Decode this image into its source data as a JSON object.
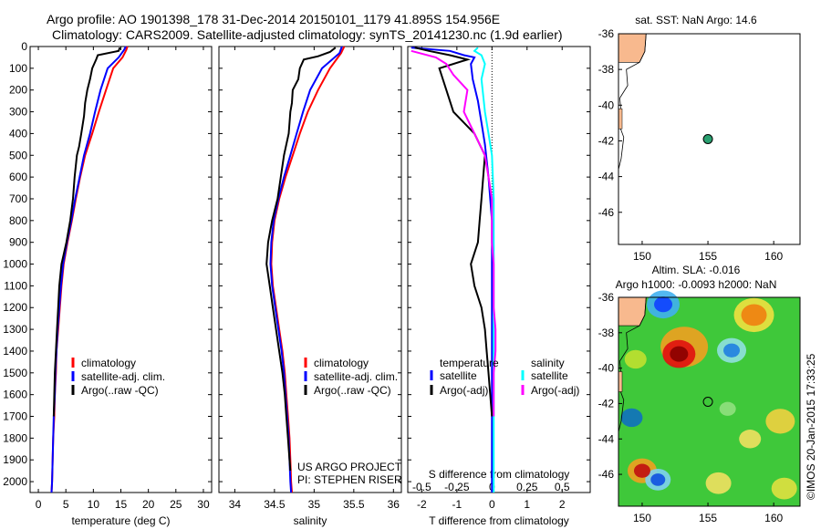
{
  "header": {
    "line1": "Argo profile: AO 1901398_178 31-Dec-2014 20150101_1179 41.895S 154.956E",
    "line2": "Climatology: CARS2009. Satellite-adjusted climatology: synTS_20141230.nc (1.9d earlier)"
  },
  "colors": {
    "climatology": "#ff0000",
    "satellite": "#0000ff",
    "argo": "#000000",
    "sal_satellite": "#00ffff",
    "sal_argo": "#ff00ff",
    "land": "#f8b98e"
  },
  "depth_axis": {
    "ticks": [
      0,
      100,
      200,
      300,
      400,
      500,
      600,
      700,
      800,
      900,
      1000,
      1100,
      1200,
      1300,
      1400,
      1500,
      1600,
      1700,
      1800,
      1900,
      2000
    ],
    "range": [
      0,
      2050
    ]
  },
  "chart_data": [
    {
      "type": "line",
      "name": "temperature",
      "xlabel": "temperature (deg C)",
      "xlim": [
        -1.5,
        31.5
      ],
      "xticks": [
        0,
        5,
        10,
        15,
        20,
        25,
        30
      ],
      "legend": [
        "climatology",
        "satellite-adj. clim.",
        "Argo(..raw -QC)"
      ],
      "series": [
        {
          "name": "climatology",
          "color": "red",
          "points": [
            [
              16.2,
              0
            ],
            [
              16.0,
              15
            ],
            [
              15.3,
              50
            ],
            [
              13.6,
              100
            ],
            [
              12.3,
              200
            ],
            [
              11.0,
              300
            ],
            [
              9.8,
              400
            ],
            [
              8.5,
              500
            ],
            [
              7.6,
              600
            ],
            [
              6.8,
              700
            ],
            [
              6.1,
              800
            ],
            [
              5.3,
              900
            ],
            [
              4.6,
              1000
            ],
            [
              4.2,
              1100
            ],
            [
              3.9,
              1200
            ],
            [
              3.6,
              1300
            ],
            [
              3.3,
              1400
            ],
            [
              3.2,
              1500
            ],
            [
              3.0,
              1600
            ],
            [
              2.9,
              1700
            ],
            [
              2.7,
              1800
            ],
            [
              2.6,
              1900
            ],
            [
              2.5,
              2000
            ],
            [
              2.4,
              2050
            ]
          ]
        },
        {
          "name": "satellite-adj. clim.",
          "color": "blue",
          "points": [
            [
              15.9,
              0
            ],
            [
              15.6,
              15
            ],
            [
              14.6,
              50
            ],
            [
              12.6,
              100
            ],
            [
              11.3,
              200
            ],
            [
              10.3,
              300
            ],
            [
              9.4,
              400
            ],
            [
              8.3,
              500
            ],
            [
              7.5,
              600
            ],
            [
              6.7,
              700
            ],
            [
              6.0,
              800
            ],
            [
              5.2,
              900
            ],
            [
              4.5,
              1000
            ],
            [
              4.1,
              1100
            ],
            [
              3.8,
              1200
            ],
            [
              3.5,
              1300
            ],
            [
              3.3,
              1400
            ],
            [
              3.1,
              1500
            ],
            [
              3.0,
              1600
            ],
            [
              2.8,
              1700
            ],
            [
              2.7,
              1800
            ],
            [
              2.6,
              1900
            ],
            [
              2.5,
              2000
            ],
            [
              2.4,
              2050
            ]
          ]
        },
        {
          "name": "Argo(..raw -QC)",
          "color": "black",
          "points": [
            [
              14.8,
              5
            ],
            [
              14.6,
              20
            ],
            [
              10.8,
              40
            ],
            [
              10.5,
              60
            ],
            [
              9.8,
              100
            ],
            [
              9.4,
              150
            ],
            [
              8.9,
              200
            ],
            [
              8.5,
              260
            ],
            [
              8.3,
              320
            ],
            [
              7.8,
              400
            ],
            [
              7.4,
              460
            ],
            [
              7.0,
              500
            ],
            [
              6.6,
              600
            ],
            [
              6.3,
              700
            ],
            [
              5.8,
              800
            ],
            [
              5.1,
              900
            ],
            [
              4.2,
              1000
            ],
            [
              3.8,
              1100
            ],
            [
              3.6,
              1200
            ],
            [
              3.4,
              1300
            ],
            [
              3.2,
              1400
            ],
            [
              3.0,
              1500
            ],
            [
              2.9,
              1600
            ],
            [
              2.8,
              1700
            ]
          ]
        }
      ]
    },
    {
      "type": "line",
      "name": "salinity",
      "xlabel": "salinity",
      "xlim": [
        33.8,
        36.1
      ],
      "xticks": [
        34,
        34.5,
        35,
        35.5,
        36
      ],
      "legend": [
        "climatology",
        "satellite-adj. clim.",
        "Argo(..raw -QC)"
      ],
      "annotation": [
        "US ARGO PROJECT",
        "PI: STEPHEN RISER"
      ],
      "series": [
        {
          "name": "climatology",
          "color": "red",
          "points": [
            [
              35.38,
              0
            ],
            [
              35.34,
              30
            ],
            [
              35.2,
              100
            ],
            [
              35.05,
              200
            ],
            [
              34.92,
              300
            ],
            [
              34.82,
              400
            ],
            [
              34.73,
              500
            ],
            [
              34.64,
              600
            ],
            [
              34.56,
              700
            ],
            [
              34.5,
              800
            ],
            [
              34.47,
              900
            ],
            [
              34.46,
              1000
            ],
            [
              34.48,
              1100
            ],
            [
              34.52,
              1200
            ],
            [
              34.56,
              1300
            ],
            [
              34.6,
              1400
            ],
            [
              34.63,
              1500
            ],
            [
              34.65,
              1600
            ],
            [
              34.67,
              1700
            ],
            [
              34.69,
              1800
            ],
            [
              34.7,
              1900
            ],
            [
              34.71,
              2000
            ],
            [
              34.72,
              2050
            ]
          ]
        },
        {
          "name": "satellite-adj. clim.",
          "color": "blue",
          "points": [
            [
              35.35,
              0
            ],
            [
              35.32,
              30
            ],
            [
              35.1,
              100
            ],
            [
              34.95,
              200
            ],
            [
              34.86,
              300
            ],
            [
              34.78,
              400
            ],
            [
              34.7,
              500
            ],
            [
              34.62,
              600
            ],
            [
              34.55,
              700
            ],
            [
              34.49,
              800
            ],
            [
              34.46,
              900
            ],
            [
              34.45,
              1000
            ],
            [
              34.47,
              1100
            ],
            [
              34.51,
              1200
            ],
            [
              34.55,
              1300
            ],
            [
              34.59,
              1400
            ],
            [
              34.62,
              1500
            ],
            [
              34.64,
              1600
            ],
            [
              34.66,
              1700
            ],
            [
              34.68,
              1800
            ],
            [
              34.69,
              1900
            ],
            [
              34.7,
              2000
            ],
            [
              34.71,
              2050
            ]
          ]
        },
        {
          "name": "Argo(..raw -QC)",
          "color": "black",
          "points": [
            [
              35.27,
              5
            ],
            [
              35.2,
              25
            ],
            [
              35.05,
              45
            ],
            [
              34.87,
              60
            ],
            [
              34.82,
              100
            ],
            [
              34.8,
              150
            ],
            [
              34.73,
              200
            ],
            [
              34.72,
              260
            ],
            [
              34.7,
              300
            ],
            [
              34.68,
              400
            ],
            [
              34.62,
              500
            ],
            [
              34.58,
              600
            ],
            [
              34.54,
              700
            ],
            [
              34.47,
              800
            ],
            [
              34.42,
              900
            ],
            [
              34.4,
              1000
            ],
            [
              34.44,
              1100
            ],
            [
              34.48,
              1200
            ],
            [
              34.52,
              1300
            ],
            [
              34.56,
              1400
            ],
            [
              34.6,
              1500
            ],
            [
              34.63,
              1600
            ],
            [
              34.65,
              1700
            ],
            [
              34.67,
              1800
            ],
            [
              34.69,
              1900
            ],
            [
              34.7,
              1950
            ]
          ]
        }
      ]
    },
    {
      "type": "line",
      "name": "difference from climatology",
      "xlabel": "T difference from climatology",
      "xlabel_top": "S difference from climatology",
      "xlim": [
        -2.4,
        2.8
      ],
      "xticks": [
        -2,
        -1,
        0,
        1,
        2
      ],
      "sticks_labels": [
        "-0.5",
        "-0.25",
        "0",
        "0.25",
        "0.5"
      ],
      "sticks_pos": [
        -2,
        -1,
        0,
        1,
        2
      ],
      "legend_headers": [
        "temperature",
        "salinity"
      ],
      "legend": [
        "satellite",
        "Argo(-adj)",
        "satellite",
        "Argo(-adj)"
      ],
      "series": [
        {
          "name": "T satellite",
          "color": "blue",
          "points": [
            [
              -2.3,
              5
            ],
            [
              -1.2,
              20
            ],
            [
              -0.8,
              40
            ],
            [
              -0.5,
              50
            ],
            [
              -0.6,
              80
            ],
            [
              -0.55,
              150
            ],
            [
              -0.4,
              250
            ],
            [
              -0.3,
              350
            ],
            [
              -0.2,
              450
            ],
            [
              -0.1,
              600
            ],
            [
              0,
              800
            ],
            [
              0,
              1200
            ],
            [
              0,
              2050
            ]
          ]
        },
        {
          "name": "T Argo(-adj)",
          "color": "black",
          "points": [
            [
              -2.2,
              5
            ],
            [
              -1.8,
              20
            ],
            [
              -1.2,
              40
            ],
            [
              -0.7,
              60
            ],
            [
              -1.5,
              100
            ],
            [
              -1.3,
              200
            ],
            [
              -1.1,
              300
            ],
            [
              -0.5,
              400
            ],
            [
              -0.2,
              500
            ],
            [
              -0.25,
              600
            ],
            [
              -0.3,
              700
            ],
            [
              -0.35,
              800
            ],
            [
              -0.4,
              900
            ],
            [
              -0.6,
              1000
            ],
            [
              -0.5,
              1100
            ],
            [
              -0.3,
              1200
            ],
            [
              -0.2,
              1300
            ],
            [
              -0.15,
              1400
            ],
            [
              -0.1,
              1500
            ],
            [
              -0.05,
              1600
            ],
            [
              0,
              1700
            ]
          ]
        },
        {
          "name": "S satellite",
          "color": "cyan",
          "points": [
            [
              -0.4,
              5
            ],
            [
              -0.5,
              20
            ],
            [
              -0.3,
              40
            ],
            [
              -0.2,
              80
            ],
            [
              -0.3,
              150
            ],
            [
              -0.2,
              300
            ],
            [
              -0.1,
              400
            ],
            [
              0,
              500
            ],
            [
              0.05,
              700
            ],
            [
              0.05,
              900
            ],
            [
              0.05,
              1100
            ],
            [
              0.05,
              1300
            ],
            [
              0.05,
              1500
            ],
            [
              0.05,
              2050
            ]
          ]
        },
        {
          "name": "S Argo(-adj)",
          "color": "magenta",
          "points": [
            [
              -2.3,
              20
            ],
            [
              -1.6,
              50
            ],
            [
              -1.3,
              80
            ],
            [
              -1.1,
              130
            ],
            [
              -0.7,
              200
            ],
            [
              -0.8,
              300
            ],
            [
              -0.5,
              400
            ],
            [
              -0.2,
              500
            ],
            [
              -0.1,
              600
            ],
            [
              0,
              700
            ],
            [
              0,
              800
            ],
            [
              0,
              900
            ],
            [
              0.05,
              1000
            ],
            [
              0.05,
              1100
            ],
            [
              0.05,
              1200
            ],
            [
              0.1,
              1300
            ],
            [
              0.1,
              1400
            ],
            [
              0.05,
              1500
            ],
            [
              0.05,
              1600
            ],
            [
              0.05,
              1700
            ]
          ]
        }
      ]
    }
  ],
  "map_top": {
    "title": "sat. SST: NaN Argo: 14.6",
    "lon": [
      148.2,
      162
    ],
    "lat": [
      -47.8,
      -36
    ],
    "xticks": [
      150,
      155,
      160
    ],
    "yticks": [
      -36,
      -38,
      -40,
      -42,
      -44,
      -46
    ],
    "marker": {
      "lon": 155,
      "lat": -41.9
    }
  },
  "map_bottom": {
    "title1": "Altim. SLA: -0.016",
    "title2": "Argo h1000: -0.0093 h2000: NaN",
    "lon": [
      148.2,
      162
    ],
    "lat": [
      -47.8,
      -36
    ],
    "xticks": [
      150,
      155,
      160
    ],
    "yticks": [
      -36,
      -38,
      -40,
      -42,
      -44,
      -46
    ],
    "marker": {
      "lon": 155,
      "lat": -41.9
    }
  },
  "credit": "©IMOS 20-Jan-2015 17:33:25"
}
